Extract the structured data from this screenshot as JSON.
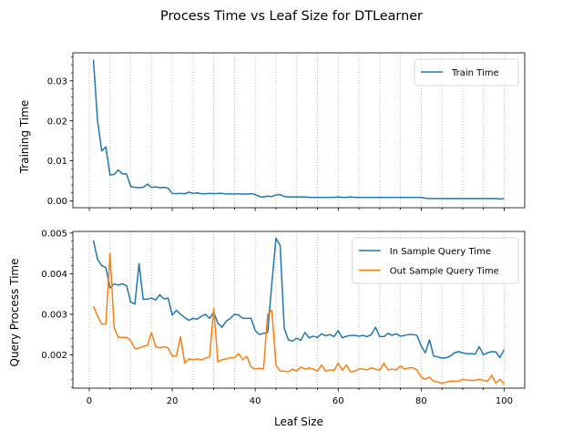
{
  "figure_title": "Process Time vs Leaf Size for DTLearner",
  "chart_data": [
    {
      "type": "line",
      "title": "",
      "xlabel": "",
      "ylabel": "Training Time",
      "xlim": [
        -3.95,
        104.95
      ],
      "ylim": [
        -0.0017,
        0.037
      ],
      "yticks": [
        {
          "value": 0.0,
          "label": "0.00"
        },
        {
          "value": 0.01,
          "label": "0.01"
        },
        {
          "value": 0.02,
          "label": "0.02"
        },
        {
          "value": 0.03,
          "label": "0.03"
        }
      ],
      "xticks_labeled": false,
      "vertical_grid": "dotted, every 5 leaf-size units",
      "legend": "upper right",
      "series": [
        {
          "name": "Train Time",
          "color": "#1f77b4",
          "x": [
            1,
            2,
            3,
            4,
            5,
            6,
            7,
            8,
            9,
            10,
            11,
            12,
            13,
            14,
            15,
            16,
            17,
            18,
            19,
            20,
            21,
            22,
            23,
            24,
            25,
            26,
            27,
            28,
            29,
            30,
            31,
            32,
            33,
            34,
            35,
            36,
            37,
            38,
            39,
            40,
            41,
            42,
            43,
            44,
            45,
            46,
            47,
            48,
            49,
            50,
            51,
            52,
            53,
            54,
            55,
            56,
            57,
            58,
            59,
            60,
            61,
            62,
            63,
            64,
            65,
            66,
            67,
            68,
            69,
            70,
            71,
            72,
            73,
            74,
            75,
            76,
            77,
            78,
            79,
            80,
            81,
            82,
            83,
            84,
            85,
            86,
            87,
            88,
            89,
            90,
            91,
            92,
            93,
            94,
            95,
            96,
            97,
            98,
            99,
            100
          ],
          "values": [
            0.0353,
            0.02,
            0.0125,
            0.0135,
            0.0065,
            0.0066,
            0.0077,
            0.0068,
            0.0067,
            0.0036,
            0.0034,
            0.0033,
            0.0034,
            0.0042,
            0.0034,
            0.0035,
            0.0033,
            0.0034,
            0.0032,
            0.0019,
            0.0018,
            0.0019,
            0.0018,
            0.0022,
            0.0019,
            0.002,
            0.0018,
            0.0018,
            0.0019,
            0.0018,
            0.0019,
            0.0019,
            0.0017,
            0.0018,
            0.0017,
            0.0018,
            0.0017,
            0.0017,
            0.0018,
            0.0016,
            0.0011,
            0.001,
            0.0012,
            0.0011,
            0.0015,
            0.0016,
            0.0011,
            0.001,
            0.001,
            0.001,
            0.001,
            0.001,
            0.0009,
            0.0009,
            0.0009,
            0.0009,
            0.0009,
            0.0009,
            0.0009,
            0.001,
            0.0009,
            0.0009,
            0.001,
            0.0009,
            0.0009,
            0.0009,
            0.0009,
            0.0009,
            0.0009,
            0.0009,
            0.0009,
            0.0009,
            0.0009,
            0.0009,
            0.0009,
            0.0009,
            0.0009,
            0.0009,
            0.0009,
            0.0009,
            0.0007,
            0.0006,
            0.0006,
            0.0006,
            0.0006,
            0.0006,
            0.0006,
            0.0006,
            0.0006,
            0.0006,
            0.0006,
            0.0006,
            0.0006,
            0.0006,
            0.0006,
            0.0006,
            0.0006,
            0.0006,
            0.0005,
            0.0006
          ]
        }
      ]
    },
    {
      "type": "line",
      "title": "",
      "xlabel": "Leaf Size",
      "ylabel": "Query Process Time",
      "xlim": [
        -3.95,
        104.95
      ],
      "ylim": [
        0.00118,
        0.00504
      ],
      "xticks": [
        {
          "value": 0,
          "label": "0"
        },
        {
          "value": 20,
          "label": "20"
        },
        {
          "value": 40,
          "label": "40"
        },
        {
          "value": 60,
          "label": "60"
        },
        {
          "value": 80,
          "label": "80"
        },
        {
          "value": 100,
          "label": "100"
        }
      ],
      "yticks": [
        {
          "value": 0.002,
          "label": "0.002"
        },
        {
          "value": 0.003,
          "label": "0.003"
        },
        {
          "value": 0.004,
          "label": "0.004"
        },
        {
          "value": 0.005,
          "label": "0.005"
        }
      ],
      "vertical_grid": "dotted, every 5 leaf-size units",
      "legend": "upper right",
      "series": [
        {
          "name": "In Sample Query Time",
          "color": "#1f77b4",
          "x": [
            1,
            2,
            3,
            4,
            5,
            6,
            7,
            8,
            9,
            10,
            11,
            12,
            13,
            14,
            15,
            16,
            17,
            18,
            19,
            20,
            21,
            22,
            23,
            24,
            25,
            26,
            27,
            28,
            29,
            30,
            31,
            32,
            33,
            34,
            35,
            36,
            37,
            38,
            39,
            40,
            41,
            42,
            43,
            44,
            45,
            46,
            47,
            48,
            49,
            50,
            51,
            52,
            53,
            54,
            55,
            56,
            57,
            58,
            59,
            60,
            61,
            62,
            63,
            64,
            65,
            66,
            67,
            68,
            69,
            70,
            71,
            72,
            73,
            74,
            75,
            76,
            77,
            78,
            79,
            80,
            81,
            82,
            83,
            84,
            85,
            86,
            87,
            88,
            89,
            90,
            91,
            92,
            93,
            94,
            95,
            96,
            97,
            98,
            99,
            100
          ],
          "values": [
            0.00482,
            0.00435,
            0.0042,
            0.00415,
            0.00365,
            0.00375,
            0.00372,
            0.00375,
            0.0037,
            0.0033,
            0.00325,
            0.00425,
            0.00337,
            0.00337,
            0.0034,
            0.00335,
            0.00348,
            0.00338,
            0.0034,
            0.00298,
            0.0031,
            0.003,
            0.00292,
            0.00285,
            0.0029,
            0.00288,
            0.00295,
            0.003,
            0.0029,
            0.00305,
            0.00278,
            0.00268,
            0.00283,
            0.0029,
            0.003,
            0.00298,
            0.0029,
            0.0029,
            0.0029,
            0.0026,
            0.0025,
            0.00253,
            0.00255,
            0.00375,
            0.00487,
            0.0047,
            0.00265,
            0.00237,
            0.00234,
            0.00241,
            0.00236,
            0.00255,
            0.00242,
            0.00246,
            0.00243,
            0.00252,
            0.00247,
            0.0025,
            0.00245,
            0.0026,
            0.00242,
            0.00246,
            0.00248,
            0.00248,
            0.00246,
            0.00248,
            0.00245,
            0.0025,
            0.00268,
            0.00245,
            0.00245,
            0.00253,
            0.00248,
            0.00252,
            0.00246,
            0.00248,
            0.0025,
            0.0025,
            0.00248,
            0.00222,
            0.00205,
            0.00237,
            0.00197,
            0.00195,
            0.00192,
            0.00193,
            0.00197,
            0.00205,
            0.00208,
            0.00205,
            0.00203,
            0.00203,
            0.00202,
            0.0022,
            0.002,
            0.00205,
            0.00208,
            0.00207,
            0.00193,
            0.00213
          ]
        },
        {
          "name": "Out Sample Query Time",
          "color": "#ff7f0e",
          "x": [
            1,
            2,
            3,
            4,
            5,
            6,
            7,
            8,
            9,
            10,
            11,
            12,
            13,
            14,
            15,
            16,
            17,
            18,
            19,
            20,
            21,
            22,
            23,
            24,
            25,
            26,
            27,
            28,
            29,
            30,
            31,
            32,
            33,
            34,
            35,
            36,
            37,
            38,
            39,
            40,
            41,
            42,
            43,
            44,
            45,
            46,
            47,
            48,
            49,
            50,
            51,
            52,
            53,
            54,
            55,
            56,
            57,
            58,
            59,
            60,
            61,
            62,
            63,
            64,
            65,
            66,
            67,
            68,
            69,
            70,
            71,
            72,
            73,
            74,
            75,
            76,
            77,
            78,
            79,
            80,
            81,
            82,
            83,
            84,
            85,
            86,
            87,
            88,
            89,
            90,
            91,
            92,
            93,
            94,
            95,
            96,
            97,
            98,
            99,
            100
          ],
          "values": [
            0.0032,
            0.00296,
            0.00276,
            0.00276,
            0.0045,
            0.00267,
            0.00243,
            0.00243,
            0.00243,
            0.00235,
            0.00215,
            0.00217,
            0.00221,
            0.00223,
            0.00255,
            0.0022,
            0.00217,
            0.0022,
            0.00217,
            0.00197,
            0.00197,
            0.00245,
            0.0018,
            0.0019,
            0.00188,
            0.0019,
            0.00188,
            0.00192,
            0.00195,
            0.00315,
            0.00183,
            0.00188,
            0.0019,
            0.00193,
            0.00193,
            0.00203,
            0.00188,
            0.00196,
            0.0017,
            0.00165,
            0.00167,
            0.00165,
            0.003,
            0.0031,
            0.00175,
            0.0016,
            0.0016,
            0.00158,
            0.00165,
            0.0016,
            0.0017,
            0.00165,
            0.00168,
            0.00165,
            0.0016,
            0.00175,
            0.0016,
            0.00163,
            0.00162,
            0.0018,
            0.00162,
            0.00175,
            0.00158,
            0.0016,
            0.00165,
            0.00165,
            0.00163,
            0.00168,
            0.00165,
            0.00162,
            0.0018,
            0.00163,
            0.00165,
            0.00163,
            0.00173,
            0.00165,
            0.00168,
            0.00168,
            0.00163,
            0.00145,
            0.0014,
            0.00145,
            0.00135,
            0.00133,
            0.0013,
            0.00133,
            0.00135,
            0.00135,
            0.00135,
            0.0014,
            0.00138,
            0.00137,
            0.00137,
            0.0014,
            0.00137,
            0.00135,
            0.0015,
            0.0013,
            0.0014,
            0.00128
          ]
        }
      ]
    }
  ]
}
